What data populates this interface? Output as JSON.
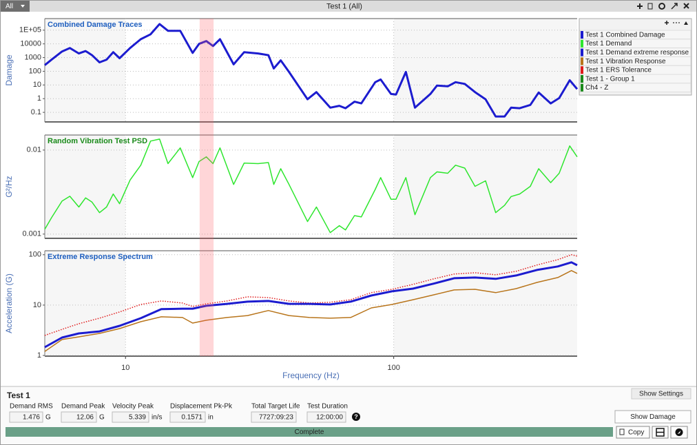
{
  "ui": {
    "filter": "All",
    "window_title": "Test 1 (All)",
    "panel_title": "Test 1",
    "show_settings": "Show Settings",
    "show_damage": "Show Damage",
    "status": "Complete",
    "copy": "Copy",
    "help_icon": "?",
    "legend_extra": [
      {
        "name": "Test 1 - Group 1",
        "color": "#1a8a1a"
      },
      {
        "name": "Ch4 - Z",
        "color": "#1a8a1a"
      }
    ],
    "fields": [
      {
        "label": "Demand RMS",
        "value": 1.476,
        "unit": "G"
      },
      {
        "label": "Demand Peak",
        "value": 12.06,
        "unit": "G"
      },
      {
        "label": "Velocity Peak",
        "value": 5.339,
        "unit": "in/s"
      },
      {
        "label": "Displacement Pk-Pk",
        "value": 0.1571,
        "unit": "in"
      },
      {
        "label": "Total Target Life",
        "value": "7727:09:23"
      },
      {
        "label": "Test Duration",
        "value": "12:00:00"
      }
    ]
  },
  "x_axis": {
    "label": "Frequency (Hz)",
    "log": true,
    "xlim": [
      5,
      483
    ],
    "xticks": [
      10,
      100
    ]
  },
  "highlight_band": [
    18.9,
    21.3
  ],
  "chart_data": [
    {
      "type": "line",
      "title": "Combined Damage Traces",
      "title_color": "#1f5fbf",
      "ylabel": "Damage",
      "log_y": true,
      "grid": true,
      "ylim": [
        0.02,
        700000
      ],
      "yticks": [
        0.1,
        1,
        10,
        100,
        1000,
        10000,
        {
          "value": 100000,
          "label": "1E+05"
        }
      ],
      "x": [
        5.0,
        5.3,
        5.8,
        6.2,
        6.7,
        7.1,
        7.5,
        8,
        8.5,
        9,
        9.5,
        10.4,
        11.4,
        12.4,
        13.4,
        14.4,
        16,
        17.8,
        18.8,
        20,
        21.2,
        22.5,
        25.3,
        27.7,
        31.2,
        34.1,
        35.7,
        37.9,
        40.7,
        47.7,
        51.5,
        58,
        62.7,
        66.1,
        71.4,
        75.7,
        85.3,
        89.4,
        97.7,
        102,
        111,
        120,
        137,
        145,
        159,
        170,
        184,
        201,
        220,
        240,
        259,
        274,
        295,
        323,
        347,
        385,
        414,
        453,
        483
      ],
      "series": [
        {
          "name": "Test 1 Combined Damage",
          "color": "#1c1ccf",
          "width": 3,
          "values": [
            280,
            700,
            2800,
            5000,
            2000,
            3000,
            1500,
            450,
            700,
            2500,
            900,
            5000,
            22000,
            50000,
            280000,
            90000,
            90000,
            2200,
            10000,
            16000,
            7000,
            22000,
            320,
            2500,
            2000,
            1500,
            160,
            630,
            90,
            0.9,
            3,
            0.22,
            0.3,
            0.2,
            0.6,
            0.45,
            16,
            25,
            2.2,
            2,
            90,
            0.22,
            2.2,
            9,
            8,
            16,
            12,
            3,
            0.9,
            0.05,
            0.05,
            0.22,
            0.2,
            0.35,
            2.8,
            0.45,
            1.1,
            22,
            5
          ]
        }
      ]
    },
    {
      "type": "line",
      "title": "Random Vibration Test PSD",
      "title_color": "#1a8a1a",
      "ylabel": "G²/Hz",
      "log_y": true,
      "grid": true,
      "ylim": [
        0.00089,
        0.0151
      ],
      "yticks": [
        0.001,
        0.01
      ],
      "x": [
        5.0,
        5.3,
        5.8,
        6.2,
        6.7,
        7.1,
        7.5,
        8,
        8.5,
        9,
        9.5,
        10.4,
        11.4,
        12.4,
        13.4,
        14.4,
        16,
        17.8,
        18.8,
        20,
        21.2,
        22.5,
        25.3,
        27.7,
        31.2,
        34.1,
        35.7,
        37.9,
        40.7,
        47.7,
        51.5,
        58,
        62.7,
        66.1,
        71.4,
        75.7,
        85.3,
        89.4,
        97.7,
        102,
        111,
        120,
        137,
        145,
        159,
        170,
        184,
        201,
        220,
        240,
        259,
        274,
        295,
        323,
        347,
        385,
        414,
        453,
        483
      ],
      "series": [
        {
          "name": "Test 1 Demand",
          "color": "#2ee62e",
          "width": 1.5,
          "values": [
            0.00114,
            0.00157,
            0.00247,
            0.00282,
            0.0021,
            0.0027,
            0.0024,
            0.0018,
            0.0021,
            0.003,
            0.0023,
            0.0044,
            0.0066,
            0.0128,
            0.0135,
            0.0069,
            0.0106,
            0.0047,
            0.0073,
            0.0083,
            0.0069,
            0.0106,
            0.0039,
            0.007,
            0.0069,
            0.0071,
            0.0039,
            0.006,
            0.0039,
            0.00141,
            0.0021,
            0.00104,
            0.00126,
            0.00112,
            0.00166,
            0.0016,
            0.0034,
            0.0047,
            0.0026,
            0.0026,
            0.0047,
            0.0017,
            0.0047,
            0.0055,
            0.0053,
            0.0066,
            0.0061,
            0.0037,
            0.0043,
            0.0018,
            0.0022,
            0.0028,
            0.003,
            0.0037,
            0.006,
            0.0041,
            0.0053,
            0.0112,
            0.0083
          ]
        }
      ]
    },
    {
      "type": "line",
      "title": "Extreme Response Spectrum",
      "title_color": "#1f5fbf",
      "ylabel": "Acceleration (G)",
      "log_y": true,
      "grid": true,
      "ylim": [
        0.97,
        120
      ],
      "yticks": [
        1,
        10,
        100
      ],
      "x": [
        5.0,
        5.8,
        6.7,
        8.0,
        9.5,
        11.4,
        13.6,
        16.3,
        17.8,
        20,
        23.9,
        28.5,
        34.1,
        40.7,
        48.5,
        58,
        69.1,
        82.5,
        98.5,
        118,
        141,
        168,
        201,
        240,
        286,
        342,
        409,
        460,
        483
      ],
      "series": [
        {
          "name": "Test 1 Demand extreme response",
          "color": "#1c1ccf",
          "width": 3,
          "values": [
            1.46,
            2.27,
            2.74,
            3.0,
            3.88,
            5.5,
            8.3,
            8.5,
            8.5,
            9.7,
            10.6,
            11.7,
            12.1,
            10.6,
            10.6,
            10.3,
            11.7,
            15.5,
            18.8,
            21.2,
            26.7,
            34.2,
            35.3,
            33.2,
            38.7,
            49.9,
            58.5,
            70.6,
            62
          ]
        },
        {
          "name": "Test 1 Vibration Response",
          "color": "#b8741a",
          "width": 1.5,
          "values": [
            1.2,
            2.07,
            2.34,
            2.74,
            3.42,
            4.69,
            5.85,
            5.67,
            4.4,
            5.0,
            5.67,
            6.2,
            7.8,
            6.2,
            5.67,
            5.5,
            5.67,
            8.8,
            10.3,
            12.8,
            16,
            20,
            20.6,
            17.7,
            21.2,
            28.2,
            35.3,
            48.5,
            42.6
          ]
        },
        {
          "name": "Test 1 ERS Tolerance",
          "color": "#e01a1a",
          "width": 1.5,
          "dash": "dotted",
          "values": [
            2.5,
            3.3,
            4.27,
            5.5,
            7.3,
            10.3,
            12.1,
            11,
            9.4,
            10.6,
            12.1,
            14.6,
            14.1,
            12.1,
            11,
            11.4,
            12.8,
            17.7,
            20.6,
            25.8,
            33.2,
            41.4,
            44,
            40,
            47,
            62.5,
            80,
            100,
            94
          ]
        }
      ]
    }
  ]
}
